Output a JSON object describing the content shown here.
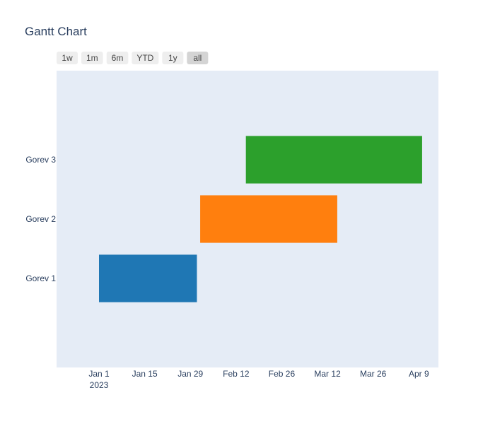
{
  "colors": {
    "plot_background": "#e5ecf6",
    "page_background": "#ffffff",
    "text": "#2a3f5f"
  },
  "range_selector": {
    "buttons": [
      "1w",
      "1m",
      "6m",
      "YTD",
      "1y",
      "all"
    ],
    "active": "all"
  },
  "chart_data": {
    "type": "gantt",
    "title": "Gantt Chart",
    "xlabel": "",
    "ylabel": "",
    "xlim": [
      "2022-12-19",
      "2023-04-15"
    ],
    "x_ticks": [
      {
        "date": "2023-01-01",
        "label": "Jan 1",
        "sublabel": "2023"
      },
      {
        "date": "2023-01-15",
        "label": "Jan 15",
        "sublabel": ""
      },
      {
        "date": "2023-01-29",
        "label": "Jan 29",
        "sublabel": ""
      },
      {
        "date": "2023-02-12",
        "label": "Feb 12",
        "sublabel": ""
      },
      {
        "date": "2023-02-26",
        "label": "Feb 26",
        "sublabel": ""
      },
      {
        "date": "2023-03-12",
        "label": "Mar 12",
        "sublabel": ""
      },
      {
        "date": "2023-03-26",
        "label": "Mar 26",
        "sublabel": ""
      },
      {
        "date": "2023-04-09",
        "label": "Apr 9",
        "sublabel": ""
      }
    ],
    "categories": [
      "Gorev 1",
      "Gorev 2",
      "Gorev 3"
    ],
    "tasks": [
      {
        "task": "Gorev 1",
        "start": "2023-01-01",
        "finish": "2023-01-31",
        "color": "#1f77b4"
      },
      {
        "task": "Gorev 2",
        "start": "2023-02-01",
        "finish": "2023-03-15",
        "color": "#ff7f0e"
      },
      {
        "task": "Gorev 3",
        "start": "2023-02-15",
        "finish": "2023-04-10",
        "color": "#2ca02c"
      }
    ],
    "grid": false,
    "legend": "none"
  }
}
